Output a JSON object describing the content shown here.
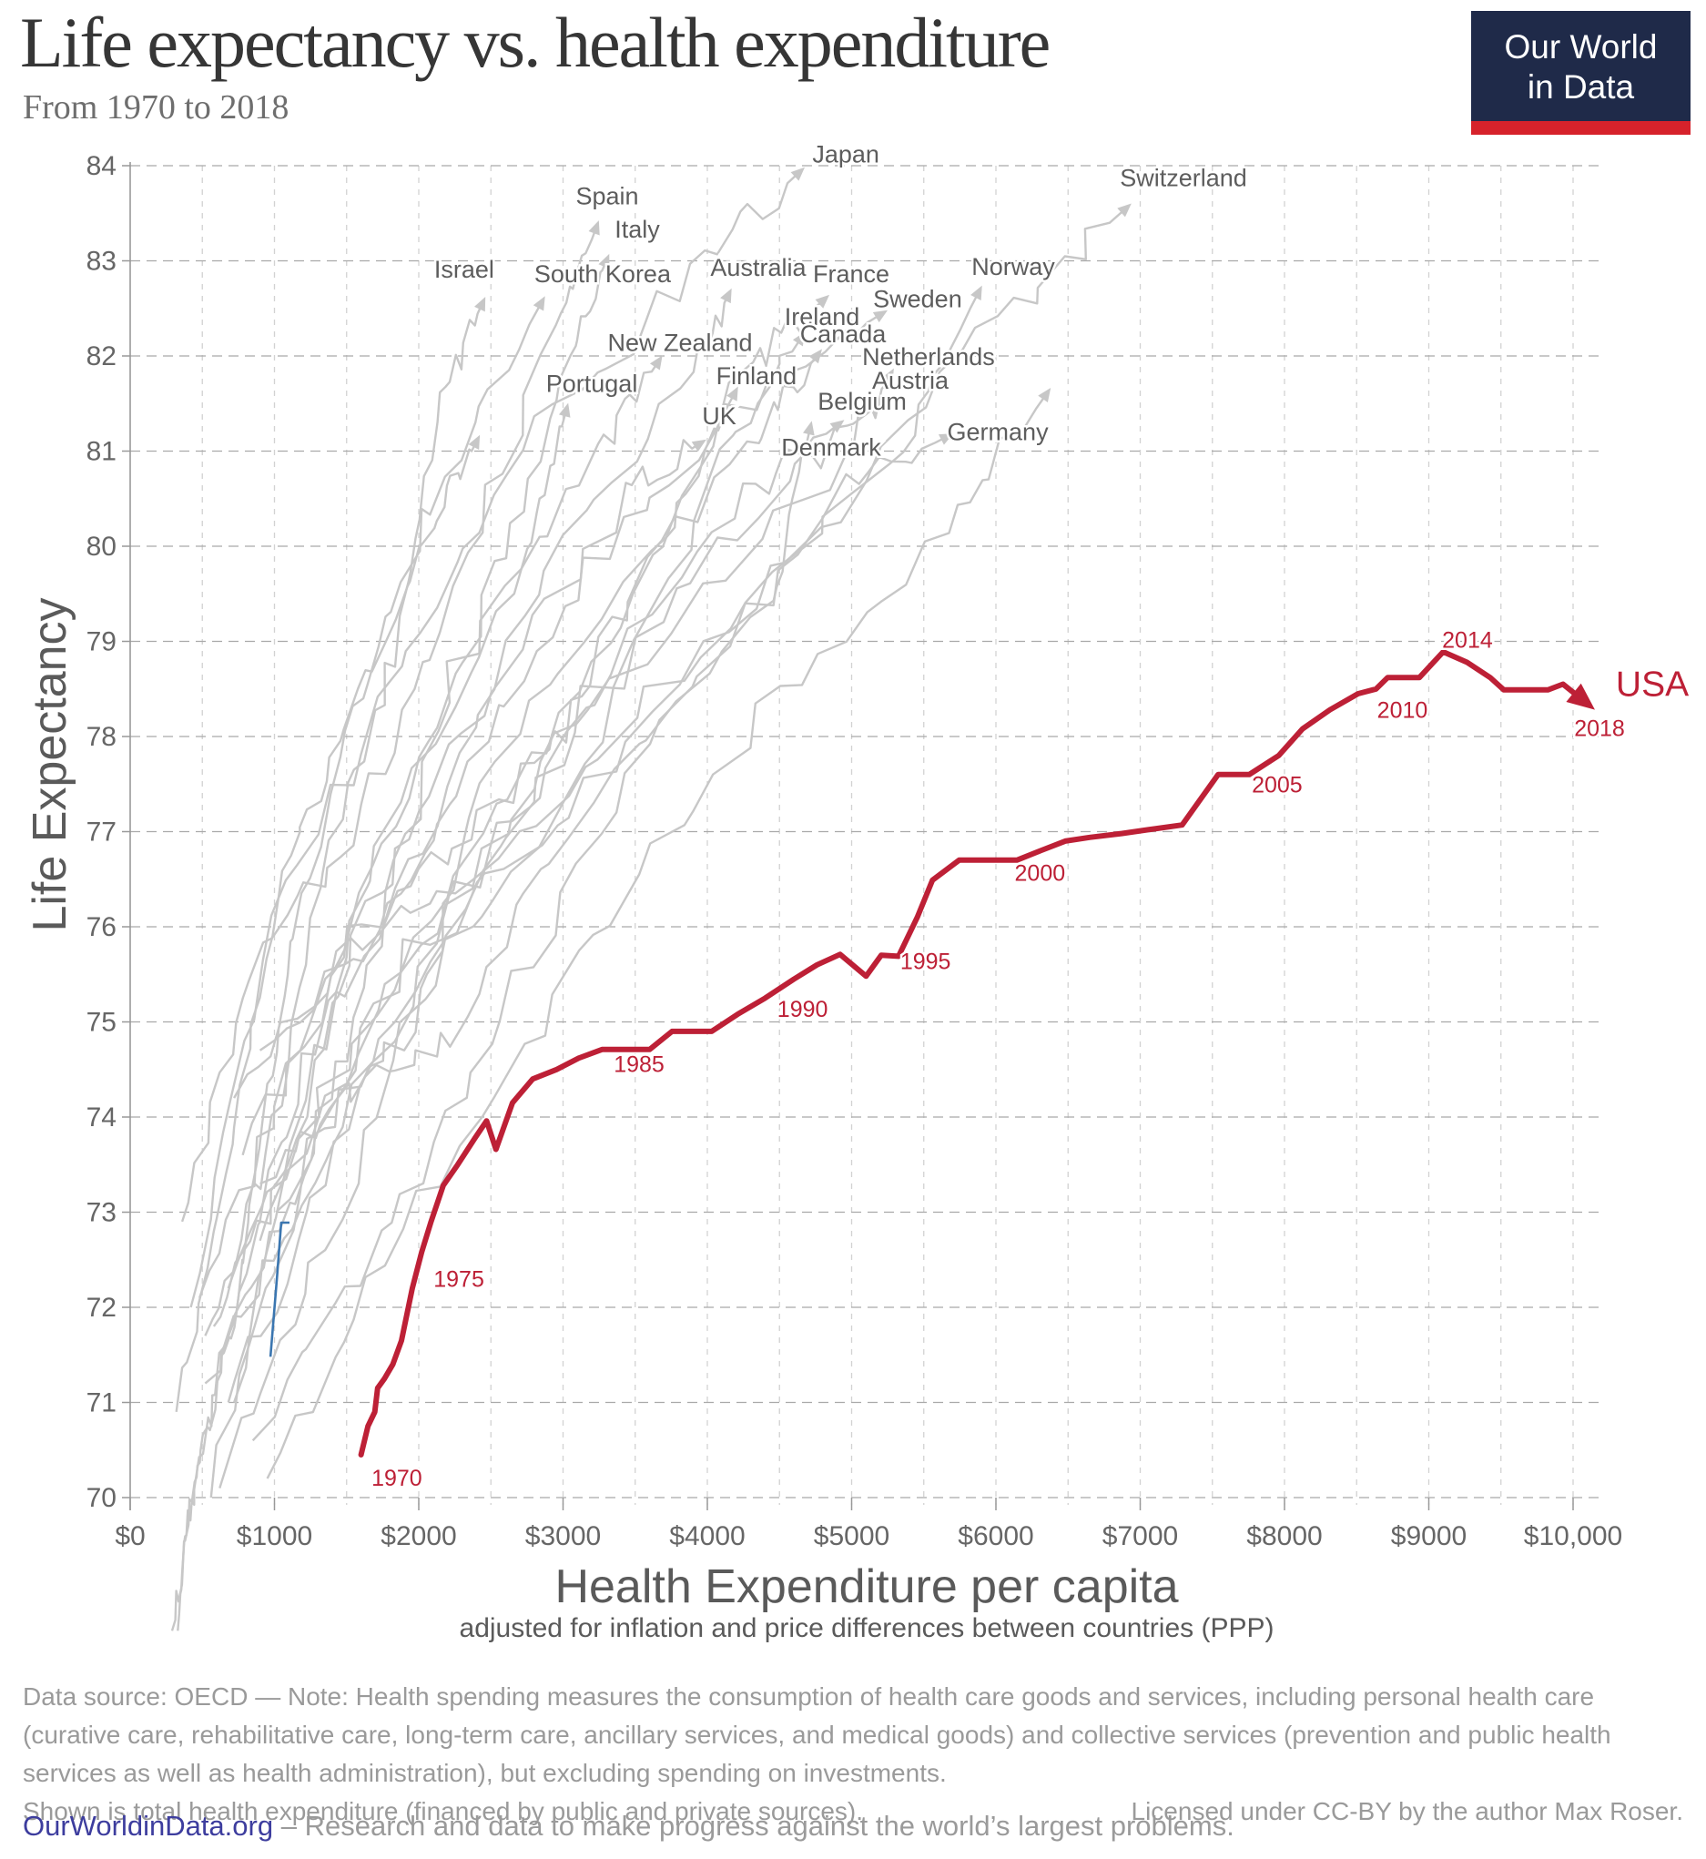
{
  "header": {
    "title": "Life expectancy vs. health expenditure",
    "subtitle": "From 1970 to 2018",
    "logo": {
      "line1": "Our World",
      "line2": "in Data",
      "bg": "#1f2a49",
      "bar": "#d6222b"
    }
  },
  "chart_data": {
    "type": "line",
    "title": "Life expectancy vs. health expenditure",
    "subtitle": "From 1970 to 2018",
    "xlabel": "Health Expenditure per capita",
    "xlabel_note": "adjusted for inflation and price differences between countries (PPP)",
    "ylabel": "Life Expectancy",
    "xlim": [
      0,
      10200
    ],
    "ylim": [
      70,
      84
    ],
    "grid": "dashed",
    "colors": {
      "usa": "#bd2036",
      "gray_line": "#c7c7c7",
      "blue_line": "#3b76b0",
      "grid_h": "#a9a9a9",
      "grid_v": "#d2d2d2",
      "axis": "#999999",
      "tick_text": "#666666"
    },
    "x_ticks": [
      {
        "v": 0,
        "label": "$0"
      },
      {
        "v": 1000,
        "label": "$1000"
      },
      {
        "v": 2000,
        "label": "$2000"
      },
      {
        "v": 3000,
        "label": "$3000"
      },
      {
        "v": 4000,
        "label": "$4000"
      },
      {
        "v": 5000,
        "label": "$5000"
      },
      {
        "v": 6000,
        "label": "$6000"
      },
      {
        "v": 7000,
        "label": "$7000"
      },
      {
        "v": 8000,
        "label": "$8000"
      },
      {
        "v": 9000,
        "label": "$9000"
      },
      {
        "v": 10000,
        "label": "$10,000"
      }
    ],
    "y_ticks": [
      70,
      71,
      72,
      73,
      74,
      75,
      76,
      77,
      78,
      79,
      80,
      81,
      82,
      83,
      84
    ],
    "usa": {
      "name": "USA",
      "years_span": "1970-2018",
      "label_pos": [
        10549,
        78.55
      ],
      "points": [
        [
          1600,
          70.45
        ],
        [
          1648,
          70.75
        ],
        [
          1695,
          70.9
        ],
        [
          1715,
          71.15
        ],
        [
          1762,
          71.25
        ],
        [
          1820,
          71.4
        ],
        [
          1880,
          71.65
        ],
        [
          1955,
          72.2
        ],
        [
          2020,
          72.58
        ],
        [
          2085,
          72.9
        ],
        [
          2170,
          73.28
        ],
        [
          2270,
          73.5
        ],
        [
          2390,
          73.78
        ],
        [
          2470,
          73.96
        ],
        [
          2535,
          73.66
        ],
        [
          2650,
          74.15
        ],
        [
          2790,
          74.4
        ],
        [
          2955,
          74.5
        ],
        [
          3110,
          74.62
        ],
        [
          3270,
          74.71
        ],
        [
          3440,
          74.71
        ],
        [
          3600,
          74.71
        ],
        [
          3755,
          74.9
        ],
        [
          4030,
          74.9
        ],
        [
          4210,
          75.08
        ],
        [
          4400,
          75.25
        ],
        [
          4600,
          75.45
        ],
        [
          4760,
          75.6
        ],
        [
          4920,
          75.71
        ],
        [
          5100,
          75.48
        ],
        [
          5205,
          75.7
        ],
        [
          5325,
          75.69
        ],
        [
          5455,
          76.1
        ],
        [
          5560,
          76.49
        ],
        [
          5745,
          76.7
        ],
        [
          5950,
          76.7
        ],
        [
          6145,
          76.7
        ],
        [
          6310,
          76.8
        ],
        [
          6480,
          76.9
        ],
        [
          6650,
          76.94
        ],
        [
          6870,
          76.98
        ],
        [
          7055,
          77.02
        ],
        [
          7290,
          77.07
        ],
        [
          7540,
          77.6
        ],
        [
          7755,
          77.6
        ],
        [
          7960,
          77.8
        ],
        [
          8125,
          78.08
        ],
        [
          8315,
          78.28
        ],
        [
          8510,
          78.45
        ],
        [
          8635,
          78.5
        ],
        [
          8715,
          78.62
        ],
        [
          8935,
          78.62
        ],
        [
          9100,
          78.89
        ],
        [
          9265,
          78.78
        ],
        [
          9425,
          78.62
        ],
        [
          9520,
          78.49
        ],
        [
          9825,
          78.49
        ],
        [
          9930,
          78.55
        ],
        [
          10070,
          78.38
        ]
      ],
      "year_labels": [
        {
          "text": "1970",
          "x": 1848,
          "y": 70.21
        },
        {
          "text": "1975",
          "x": 2278,
          "y": 72.3
        },
        {
          "text": "1985",
          "x": 3527,
          "y": 74.56
        },
        {
          "text": "1990",
          "x": 4660,
          "y": 75.14
        },
        {
          "text": "1995",
          "x": 5512,
          "y": 75.64
        },
        {
          "text": "2000",
          "x": 6305,
          "y": 76.57
        },
        {
          "text": "2005",
          "x": 7949,
          "y": 77.5
        },
        {
          "text": "2010",
          "x": 8817,
          "y": 78.28
        },
        {
          "text": "2014",
          "x": 9268,
          "y": 79.02
        },
        {
          "text": "2018",
          "x": 10183,
          "y": 78.09
        }
      ]
    },
    "blue_segment": {
      "points": [
        [
          972,
          71.48
        ],
        [
          1018,
          72.33
        ],
        [
          1047,
          72.89
        ],
        [
          1104,
          72.89
        ]
      ]
    },
    "countries": [
      {
        "name": "Japan",
        "label_pos": [
          4960,
          84.12
        ],
        "points": [
          [
            420,
            72.0
          ],
          [
            950,
            76.1
          ],
          [
            1950,
            78.9
          ],
          [
            2850,
            81.2
          ],
          [
            3900,
            82.9
          ],
          [
            4637,
            83.93
          ]
        ]
      },
      {
        "name": "Switzerland",
        "label_pos": [
          7300,
          83.87
        ],
        "points": [
          [
            1010,
            73.0
          ],
          [
            1950,
            75.7
          ],
          [
            3200,
            77.5
          ],
          [
            4600,
            79.9
          ],
          [
            5900,
            82.2
          ],
          [
            6900,
            83.55
          ]
        ]
      },
      {
        "name": "Spain",
        "label_pos": [
          3306,
          83.68
        ],
        "points": [
          [
            360,
            72.9
          ],
          [
            850,
            75.6
          ],
          [
            1550,
            77.0
          ],
          [
            2150,
            79.1
          ],
          [
            2950,
            82.2
          ],
          [
            3230,
            83.35
          ]
        ]
      },
      {
        "name": "Italy",
        "label_pos": [
          3514,
          83.33
        ],
        "points": [
          [
            480,
            72.1
          ],
          [
            1100,
            74.4
          ],
          [
            1850,
            77.1
          ],
          [
            2550,
            79.7
          ],
          [
            3050,
            82.1
          ],
          [
            3300,
            83.0
          ]
        ]
      },
      {
        "name": "Israel",
        "label_pos": [
          2315,
          82.91
        ],
        "points": [
          [
            520,
            71.7
          ],
          [
            950,
            73.6
          ],
          [
            1350,
            76.6
          ],
          [
            1850,
            78.9
          ],
          [
            2150,
            81.6
          ],
          [
            2440,
            82.55
          ]
        ]
      },
      {
        "name": "South Korea",
        "label_pos": [
          3274,
          82.86
        ],
        "points": [
          [
            330,
            68.6
          ],
          [
            400,
            69.8
          ],
          [
            520,
            70.6
          ],
          [
            700,
            71.7
          ],
          [
            900,
            73.8
          ],
          [
            1150,
            76.0
          ],
          [
            1600,
            78.5
          ],
          [
            2100,
            80.5
          ],
          [
            2850,
            82.56
          ]
        ]
      },
      {
        "name": "Australia",
        "label_pos": [
          4353,
          82.93
        ],
        "points": [
          [
            720,
            71.0
          ],
          [
            1250,
            74.6
          ],
          [
            2100,
            77.1
          ],
          [
            2900,
            79.8
          ],
          [
            3900,
            81.9
          ],
          [
            4145,
            82.64
          ]
        ]
      },
      {
        "name": "France",
        "label_pos": [
          4997,
          82.86
        ],
        "points": [
          [
            680,
            72.2
          ],
          [
            1350,
            74.3
          ],
          [
            2400,
            76.9
          ],
          [
            3400,
            79.2
          ],
          [
            4300,
            81.9
          ],
          [
            4807,
            82.59
          ]
        ]
      },
      {
        "name": "Norway",
        "label_pos": [
          6120,
          82.94
        ],
        "points": [
          [
            720,
            74.2
          ],
          [
            1500,
            75.8
          ],
          [
            2500,
            76.7
          ],
          [
            3950,
            78.9
          ],
          [
            5350,
            81.1
          ],
          [
            5880,
            82.67
          ]
        ]
      },
      {
        "name": "Sweden",
        "label_pos": [
          5457,
          82.6
        ],
        "points": [
          [
            900,
            74.7
          ],
          [
            1750,
            75.9
          ],
          [
            2350,
            77.7
          ],
          [
            3150,
            79.8
          ],
          [
            4300,
            81.6
          ],
          [
            5205,
            82.44
          ]
        ]
      },
      {
        "name": "Ireland",
        "label_pos": [
          4795,
          82.41
        ],
        "points": [
          [
            520,
            71.2
          ],
          [
            1150,
            72.9
          ],
          [
            1750,
            74.9
          ],
          [
            2800,
            76.7
          ],
          [
            4100,
            80.9
          ],
          [
            4650,
            82.19
          ]
        ]
      },
      {
        "name": "Canada",
        "label_pos": [
          4940,
          82.23
        ],
        "points": [
          [
            900,
            72.7
          ],
          [
            1800,
            75.3
          ],
          [
            2800,
            77.5
          ],
          [
            3400,
            79.3
          ],
          [
            4350,
            81.2
          ],
          [
            4763,
            82.01
          ]
        ]
      },
      {
        "name": "New Zealand",
        "label_pos": [
          3811,
          82.14
        ],
        "points": [
          [
            620,
            71.5
          ],
          [
            1150,
            73.2
          ],
          [
            1650,
            75.5
          ],
          [
            2250,
            78.7
          ],
          [
            3250,
            81.0
          ],
          [
            3660,
            81.94
          ]
        ]
      },
      {
        "name": "Netherlands",
        "label_pos": [
          5533,
          81.99
        ],
        "points": [
          [
            780,
            73.6
          ],
          [
            1550,
            75.9
          ],
          [
            2350,
            77.0
          ],
          [
            3150,
            78.3
          ],
          [
            4950,
            80.9
          ],
          [
            5268,
            81.8
          ]
        ]
      },
      {
        "name": "Finland",
        "label_pos": [
          4340,
          81.79
        ],
        "points": [
          [
            560,
            70.0
          ],
          [
            1250,
            73.7
          ],
          [
            1950,
            75.0
          ],
          [
            2500,
            77.7
          ],
          [
            3700,
            80.2
          ],
          [
            4189,
            81.61
          ]
        ]
      },
      {
        "name": "Austria",
        "label_pos": [
          5407,
          81.74
        ],
        "points": [
          [
            620,
            70.1
          ],
          [
            1350,
            72.7
          ],
          [
            2200,
            75.9
          ],
          [
            3200,
            78.4
          ],
          [
            4550,
            80.7
          ],
          [
            5167,
            81.47
          ]
        ]
      },
      {
        "name": "Portugal",
        "label_pos": [
          3199,
          81.71
        ],
        "points": [
          [
            290,
            68.6
          ],
          [
            430,
            70.0
          ],
          [
            650,
            71.6
          ],
          [
            1150,
            74.2
          ],
          [
            1750,
            76.9
          ],
          [
            2750,
            79.9
          ],
          [
            3022,
            81.43
          ]
        ]
      },
      {
        "name": "Belgium",
        "label_pos": [
          5073,
          81.52
        ],
        "points": [
          [
            680,
            71.0
          ],
          [
            1350,
            73.4
          ],
          [
            2200,
            76.2
          ],
          [
            3000,
            77.9
          ],
          [
            4150,
            80.4
          ],
          [
            4908,
            81.28
          ]
        ]
      },
      {
        "name": "UK",
        "label_pos": [
          4082,
          81.37
        ],
        "points": [
          [
            580,
            71.8
          ],
          [
            1050,
            73.3
          ],
          [
            1550,
            75.9
          ],
          [
            2250,
            78.0
          ],
          [
            3450,
            80.6
          ],
          [
            3949,
            81.08
          ]
        ]
      },
      {
        "name": "Denmark",
        "label_pos": [
          4858,
          81.04
        ],
        "points": [
          [
            900,
            73.3
          ],
          [
            1550,
            74.3
          ],
          [
            2250,
            74.9
          ],
          [
            3000,
            77.0
          ],
          [
            4450,
            79.5
          ],
          [
            4712,
            81.24
          ]
        ]
      },
      {
        "name": "Germany",
        "label_pos": [
          6013,
          81.2
        ],
        "points": [
          [
            850,
            70.6
          ],
          [
            1800,
            72.9
          ],
          [
            2700,
            75.4
          ],
          [
            3700,
            78.2
          ],
          [
            4950,
            80.6
          ],
          [
            5659,
            81.15
          ]
        ]
      },
      {
        "name": "",
        "label_pos": null,
        "points": [
          [
            320,
            70.9
          ],
          [
            700,
            73.6
          ],
          [
            1050,
            76.5
          ],
          [
            1500,
            78.1
          ],
          [
            2100,
            80.2
          ],
          [
            2400,
            81.1
          ]
        ]
      },
      {
        "name": "",
        "label_pos": null,
        "points": [
          [
            950,
            70.2
          ],
          [
            1900,
            72.8
          ],
          [
            3100,
            75.6
          ],
          [
            4400,
            78.2
          ],
          [
            5700,
            80.2
          ],
          [
            6350,
            81.6
          ]
        ]
      }
    ]
  },
  "footer": {
    "note": "Data source: OECD — Note: Health spending measures the consumption of health care goods and services, including personal health care (curative care, rehabilitative care, long-term care, ancillary services, and medical goods) and collective services (prevention and public health services as well as health administration), but excluding spending on investments.",
    "shown": "Shown is total health expenditure (financed by public and private sources).",
    "license": "Licensed under CC-BY by the author Max Roser.",
    "site": "OurWorldinData.org",
    "tagline": "– Research and data to make progress against the world’s largest problems."
  }
}
